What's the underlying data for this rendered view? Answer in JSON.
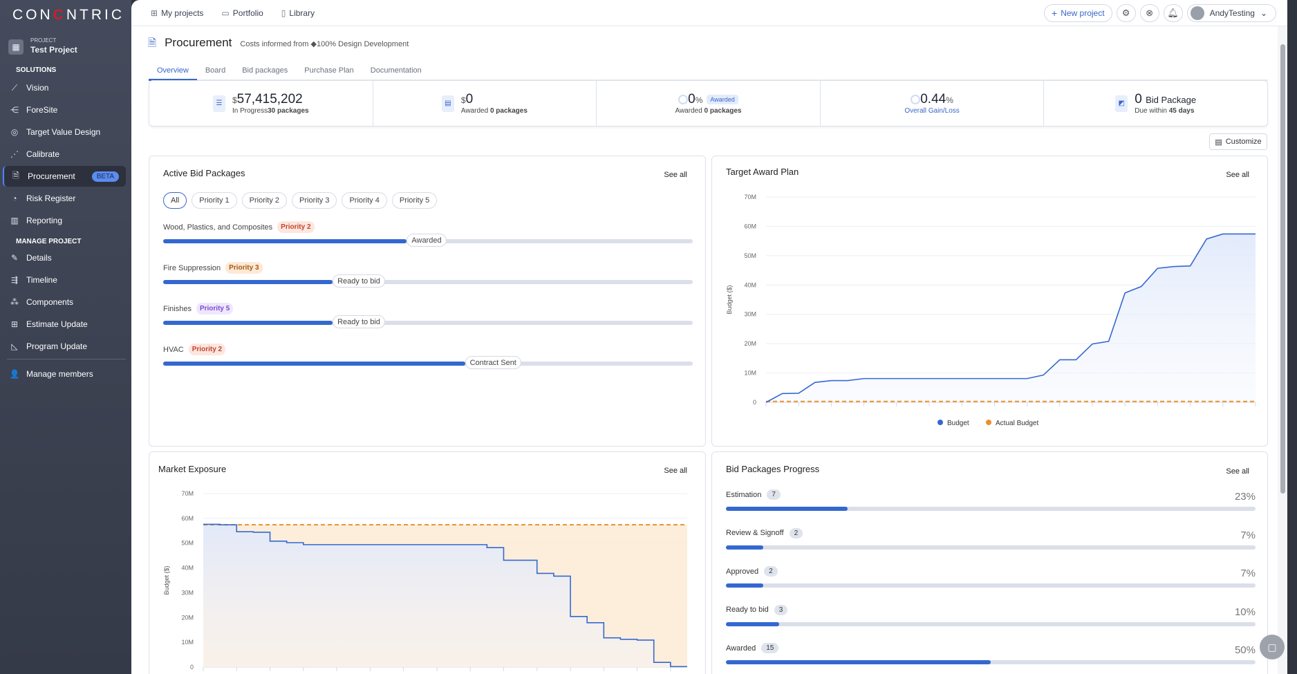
{
  "brand": {
    "logo": "CONCENTRIC"
  },
  "sidebar": {
    "project_label": "PROJECT",
    "project_name": "Test Project",
    "solutions_heading": "SOLUTIONS",
    "manage_heading": "MANAGE PROJECT",
    "solutions": [
      {
        "label": "Vision",
        "icon": "chart-line-icon"
      },
      {
        "label": "ForeSite",
        "icon": "branch-icon"
      },
      {
        "label": "Target Value Design",
        "icon": "target-icon"
      },
      {
        "label": "Calibrate",
        "icon": "scatter-icon"
      },
      {
        "label": "Procurement",
        "icon": "document-check-icon",
        "badge": "BETA",
        "active": true
      },
      {
        "label": "Risk Register",
        "icon": "gauge-icon"
      },
      {
        "label": "Reporting",
        "icon": "report-icon"
      }
    ],
    "manage": [
      {
        "label": "Details",
        "icon": "edit-doc-icon"
      },
      {
        "label": "Timeline",
        "icon": "timeline-icon"
      },
      {
        "label": "Components",
        "icon": "components-icon"
      },
      {
        "label": "Estimate Update",
        "icon": "calculator-icon"
      },
      {
        "label": "Program Update",
        "icon": "triangle-ruler-icon"
      }
    ],
    "members": "Manage members"
  },
  "topnav": {
    "items": [
      "My projects",
      "Portfolio",
      "Library"
    ],
    "new_project": "New project",
    "user": "AndyTesting"
  },
  "page": {
    "title": "Procurement",
    "subtitle": "Costs informed from",
    "source": "100% Design Development",
    "tabs": [
      "Overview",
      "Board",
      "Bid packages",
      "Purchase Plan",
      "Documentation"
    ],
    "active_tab": "Overview"
  },
  "kpis": [
    {
      "currency": "$",
      "value": "57,415,202",
      "label": "In Progress",
      "extra": "30 packages"
    },
    {
      "currency": "$",
      "value": "0",
      "label": "Awarded",
      "extra": "0 packages"
    },
    {
      "value": "0",
      "unit": "%",
      "badge": "Awarded",
      "label": "Awarded",
      "extra": "0 packages"
    },
    {
      "value": "0.44",
      "unit": "%",
      "label": "Overall Gain/Loss"
    },
    {
      "value": "0",
      "unit_text": "Bid Package",
      "label": "Due within",
      "extra": "45 days"
    }
  ],
  "customize": "Customize",
  "active_bid": {
    "title": "Active Bid Packages",
    "see_all": "See all",
    "filters": [
      "All",
      "Priority 1",
      "Priority 2",
      "Priority 3",
      "Priority 4",
      "Priority 5"
    ],
    "active_filter": "All",
    "items": [
      {
        "name": "Wood, Plastics, and Composites",
        "priority": "Priority 2",
        "stage": "Awarded",
        "progress": 0.46,
        "color": "#c0452c",
        "bg": "#fde6df"
      },
      {
        "name": "Fire Suppression",
        "priority": "Priority 3",
        "stage": "Ready to bid",
        "progress": 0.32,
        "color": "#a45a12",
        "bg": "#fde9d6"
      },
      {
        "name": "Finishes",
        "priority": "Priority 5",
        "stage": "Ready to bid",
        "progress": 0.32,
        "color": "#7a4bd0",
        "bg": "#efe7fd"
      },
      {
        "name": "HVAC",
        "priority": "Priority 2",
        "stage": "Contract Sent",
        "progress": 0.57,
        "color": "#c0452c",
        "bg": "#fde6df"
      }
    ]
  },
  "progress": {
    "title": "Bid Packages Progress",
    "see_all": "See all",
    "rows": [
      {
        "label": "Estimation",
        "count": "7",
        "pct": "23%",
        "value": 0.23
      },
      {
        "label": "Review & Signoff",
        "count": "2",
        "pct": "7%",
        "value": 0.07
      },
      {
        "label": "Approved",
        "count": "2",
        "pct": "7%",
        "value": 0.07
      },
      {
        "label": "Ready to bid",
        "count": "3",
        "pct": "10%",
        "value": 0.1
      },
      {
        "label": "Awarded",
        "count": "15",
        "pct": "50%",
        "value": 0.5
      }
    ]
  },
  "chart_data": [
    {
      "id": "target",
      "type": "area",
      "title": "Target Award Plan",
      "see_all": "See all",
      "ylabel": "Budget ($)",
      "ylim": [
        0,
        70
      ],
      "yticks": [
        "0",
        "10M",
        "20M",
        "30M",
        "40M",
        "50M",
        "60M",
        "70M"
      ],
      "grid": true,
      "legend": "bottom",
      "series": [
        {
          "name": "Budget",
          "color": "#3468d0",
          "values": [
            0,
            3.0,
            3.1,
            6.8,
            7.4,
            7.4,
            8.1,
            8.1,
            8.1,
            8.1,
            8.1,
            8.1,
            8.1,
            8.1,
            8.1,
            8.1,
            8.1,
            9.3,
            14.5,
            14.5,
            19.9,
            20.8,
            37.3,
            39.5,
            45.7,
            46.3,
            46.5,
            55.7,
            57.4,
            57.4,
            57.4
          ]
        },
        {
          "name": "Actual Budget",
          "color": "#e8922e",
          "values": [
            0.3,
            0.3,
            0.3,
            0.3,
            0.3,
            0.3,
            0.3,
            0.3,
            0.3,
            0.3,
            0.3,
            0.3,
            0.3,
            0.3,
            0.3,
            0.3,
            0.3,
            0.3,
            0.3,
            0.3,
            0.3,
            0.3,
            0.3,
            0.3,
            0.3,
            0.3,
            0.3,
            0.3,
            0.3,
            0.3,
            0.3
          ]
        }
      ]
    },
    {
      "id": "market",
      "type": "area",
      "title": "Market Exposure",
      "see_all": "See all",
      "ylabel": "Budget ($)",
      "ylim": [
        0,
        70
      ],
      "yticks": [
        "0",
        "10M",
        "20M",
        "30M",
        "40M",
        "50M",
        "60M",
        "70M"
      ],
      "grid": true,
      "series": [
        {
          "name": "Budget",
          "color": "#3468d0",
          "values": [
            57.6,
            57.4,
            54.6,
            54.4,
            50.8,
            50.2,
            49.4,
            49.4,
            49.4,
            49.4,
            49.4,
            49.4,
            49.4,
            49.4,
            49.4,
            49.4,
            49.4,
            48.2,
            43.1,
            43.1,
            37.8,
            36.7,
            20.4,
            17.9,
            11.8,
            11.2,
            10.9,
            1.9,
            0.2,
            0.2
          ]
        },
        {
          "name": "Actual Budget",
          "color": "#e8922e",
          "values": [
            57.4,
            57.4,
            57.4,
            57.4,
            57.4,
            57.4,
            57.4,
            57.4,
            57.4,
            57.4,
            57.4,
            57.4,
            57.4,
            57.4,
            57.4,
            57.4,
            57.4,
            57.4,
            57.4,
            57.4,
            57.4,
            57.4,
            57.4,
            57.4,
            57.4,
            57.4,
            57.4,
            57.4,
            57.4,
            57.4
          ]
        }
      ]
    }
  ]
}
